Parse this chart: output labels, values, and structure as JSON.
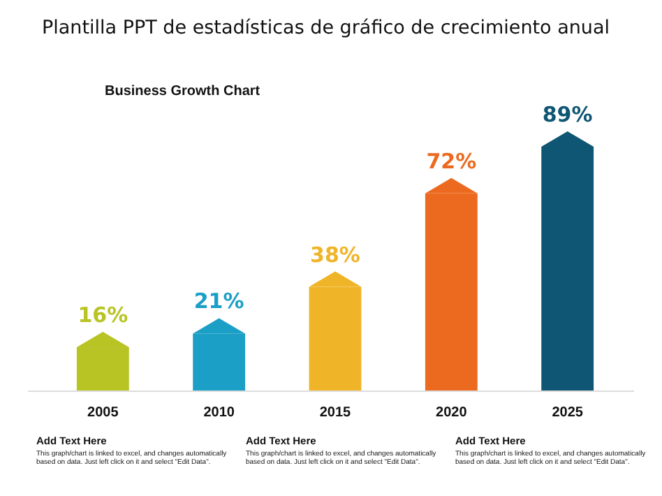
{
  "chart_data": {
    "type": "bar",
    "title": "Plantilla PPT de estadísticas de gráfico de crecimiento anual",
    "subtitle": "Business Growth Chart",
    "categories": [
      "2005",
      "2010",
      "2015",
      "2020",
      "2025"
    ],
    "values": [
      16,
      21,
      38,
      72,
      89
    ],
    "value_labels": [
      "16%",
      "21%",
      "38%",
      "72%",
      "89%"
    ],
    "colors": [
      "#b8c424",
      "#1b9fc6",
      "#f0b429",
      "#ec6a1f",
      "#0e5674"
    ],
    "annotations": [
      "Add Text Here",
      "This graph/chart is linked to excel, and changes automatically based on data. Just left click on it and select \"Edit Data\".",
      "Add Text Here",
      "This graph/chart is linked to excel, and changes automatically based on data. Just left click on it and select \"Edit Data\".",
      "Add Text Here",
      "This graph/chart is linked to excel, and changes automatically based on data. Just left click on it and select \"Edit Data\"."
    ]
  }
}
